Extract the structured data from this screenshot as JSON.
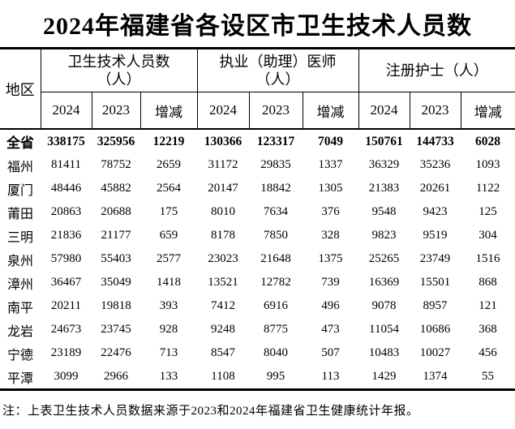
{
  "title": "2024年福建省各设区市卫生技术人员数",
  "note": "注：上表卫生技术人员数据来源于2023和2024年福建省卫生健康统计年报。",
  "table": {
    "region_header": "地区",
    "groups": [
      {
        "label": "卫生技术人员数\n（人）"
      },
      {
        "label": "执业（助理）医师\n（人）"
      },
      {
        "label": "注册护士（人）"
      }
    ],
    "year_cols": [
      "2024",
      "2023",
      "增减"
    ],
    "rows": [
      {
        "region": "全省",
        "bold": true,
        "values": [
          338175,
          325956,
          12219,
          130366,
          123317,
          7049,
          150761,
          144733,
          6028
        ]
      },
      {
        "region": "福州",
        "bold": false,
        "values": [
          81411,
          78752,
          2659,
          31172,
          29835,
          1337,
          36329,
          35236,
          1093
        ]
      },
      {
        "region": "厦门",
        "bold": false,
        "values": [
          48446,
          45882,
          2564,
          20147,
          18842,
          1305,
          21383,
          20261,
          1122
        ]
      },
      {
        "region": "莆田",
        "bold": false,
        "values": [
          20863,
          20688,
          175,
          8010,
          7634,
          376,
          9548,
          9423,
          125
        ]
      },
      {
        "region": "三明",
        "bold": false,
        "values": [
          21836,
          21177,
          659,
          8178,
          7850,
          328,
          9823,
          9519,
          304
        ]
      },
      {
        "region": "泉州",
        "bold": false,
        "values": [
          57980,
          55403,
          2577,
          23023,
          21648,
          1375,
          25265,
          23749,
          1516
        ]
      },
      {
        "region": "漳州",
        "bold": false,
        "values": [
          36467,
          35049,
          1418,
          13521,
          12782,
          739,
          16369,
          15501,
          868
        ]
      },
      {
        "region": "南平",
        "bold": false,
        "values": [
          20211,
          19818,
          393,
          7412,
          6916,
          496,
          9078,
          8957,
          121
        ]
      },
      {
        "region": "龙岩",
        "bold": false,
        "values": [
          24673,
          23745,
          928,
          9248,
          8775,
          473,
          11054,
          10686,
          368
        ]
      },
      {
        "region": "宁德",
        "bold": false,
        "values": [
          23189,
          22476,
          713,
          8547,
          8040,
          507,
          10483,
          10027,
          456
        ]
      },
      {
        "region": "平潭",
        "bold": false,
        "values": [
          3099,
          2966,
          133,
          1108,
          995,
          113,
          1429,
          1374,
          55
        ]
      }
    ]
  }
}
